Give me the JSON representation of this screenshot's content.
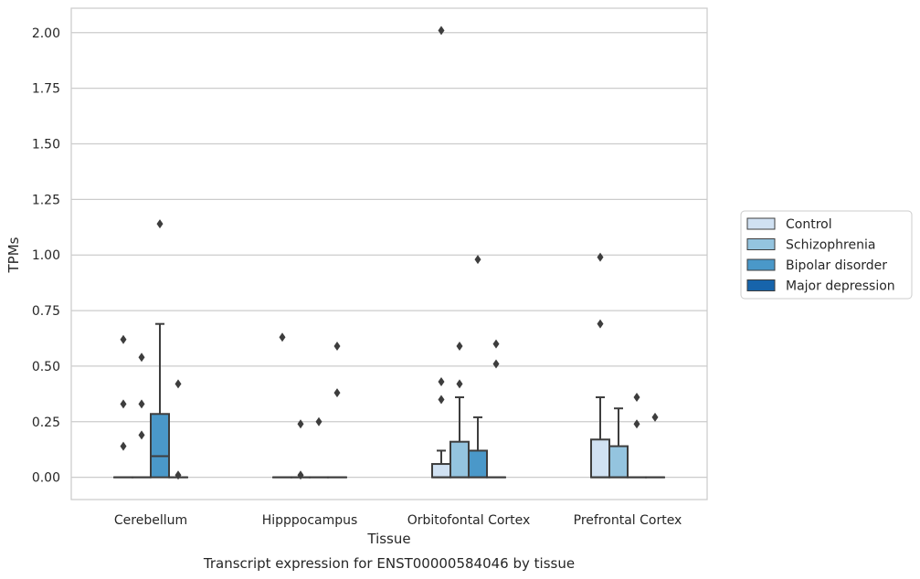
{
  "caption": "Transcript expression for ENST00000584046 by tissue",
  "chart_data": {
    "type": "box",
    "xlabel": "Tissue",
    "ylabel": "TPMs",
    "ylim": [
      -0.1,
      2.11
    ],
    "yticks": [
      "0.00",
      "0.25",
      "0.50",
      "0.75",
      "1.00",
      "1.25",
      "1.50",
      "1.75",
      "2.00"
    ],
    "ytick_values": [
      0,
      0.25,
      0.5,
      0.75,
      1.0,
      1.25,
      1.5,
      1.75,
      2.0
    ],
    "grid": "horizontal",
    "legend_position": "right",
    "categories": [
      "Cerebellum",
      "Hipppocampus",
      "Orbitofontal Cortex",
      "Prefrontal Cortex"
    ],
    "series": [
      {
        "name": "Control",
        "color": "#d0e1f2",
        "boxes": [
          {
            "q1": 0,
            "median": 0,
            "q3": 0,
            "whisker_low": 0,
            "whisker_high": 0,
            "outliers": [
              0.62,
              0.33,
              0.14
            ]
          },
          {
            "q1": 0,
            "median": 0,
            "q3": 0,
            "whisker_low": 0,
            "whisker_high": 0,
            "outliers": [
              0.63
            ]
          },
          {
            "q1": 0,
            "median": 0,
            "q3": 0.06,
            "whisker_low": 0,
            "whisker_high": 0.12,
            "outliers": [
              2.01,
              0.43,
              0.35
            ]
          },
          {
            "q1": 0,
            "median": 0,
            "q3": 0.17,
            "whisker_low": 0,
            "whisker_high": 0.36,
            "outliers": [
              0.99,
              0.69
            ]
          }
        ]
      },
      {
        "name": "Schizophrenia",
        "color": "#94c4df",
        "boxes": [
          {
            "q1": 0,
            "median": 0,
            "q3": 0,
            "whisker_low": 0,
            "whisker_high": 0,
            "outliers": [
              0.54,
              0.33,
              0.19
            ]
          },
          {
            "q1": 0,
            "median": 0,
            "q3": 0,
            "whisker_low": 0,
            "whisker_high": 0,
            "outliers": [
              0.24,
              0.01
            ]
          },
          {
            "q1": 0,
            "median": 0,
            "q3": 0.16,
            "whisker_low": 0,
            "whisker_high": 0.36,
            "outliers": [
              0.59,
              0.42
            ]
          },
          {
            "q1": 0,
            "median": 0,
            "q3": 0.14,
            "whisker_low": 0,
            "whisker_high": 0.31,
            "outliers": []
          }
        ]
      },
      {
        "name": "Bipolar disorder",
        "color": "#4a98c9",
        "boxes": [
          {
            "q1": 0,
            "median": 0.095,
            "q3": 0.285,
            "whisker_low": 0,
            "whisker_high": 0.69,
            "outliers": [
              1.14
            ]
          },
          {
            "q1": 0,
            "median": 0,
            "q3": 0,
            "whisker_low": 0,
            "whisker_high": 0,
            "outliers": [
              0.25
            ]
          },
          {
            "q1": 0,
            "median": 0,
            "q3": 0.12,
            "whisker_low": 0,
            "whisker_high": 0.27,
            "outliers": [
              0.98
            ]
          },
          {
            "q1": 0,
            "median": 0,
            "q3": 0,
            "whisker_low": 0,
            "whisker_high": 0,
            "outliers": [
              0.36,
              0.24
            ]
          }
        ]
      },
      {
        "name": "Major depression",
        "color": "#1764ab",
        "boxes": [
          {
            "q1": 0,
            "median": 0,
            "q3": 0,
            "whisker_low": 0,
            "whisker_high": 0,
            "outliers": [
              0.42,
              0.01
            ]
          },
          {
            "q1": 0,
            "median": 0,
            "q3": 0,
            "whisker_low": 0,
            "whisker_high": 0,
            "outliers": [
              0.59,
              0.38
            ]
          },
          {
            "q1": 0,
            "median": 0,
            "q3": 0,
            "whisker_low": 0,
            "whisker_high": 0,
            "outliers": [
              0.6,
              0.51
            ]
          },
          {
            "q1": 0,
            "median": 0,
            "q3": 0,
            "whisker_low": 0,
            "whisker_high": 0,
            "outliers": [
              0.27
            ]
          }
        ]
      }
    ]
  }
}
